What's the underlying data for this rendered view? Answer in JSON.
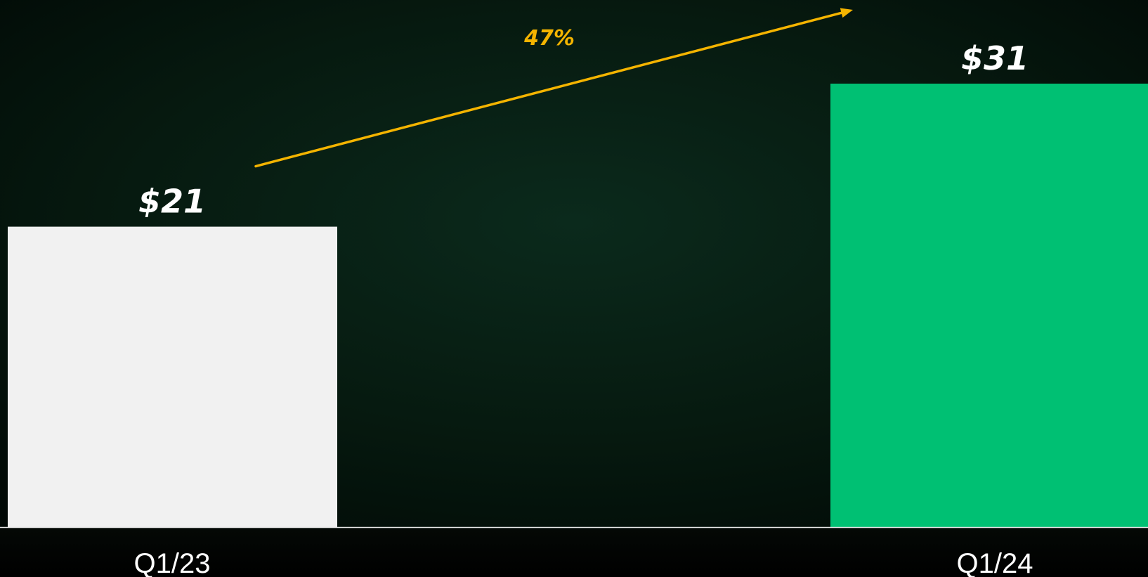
{
  "chart_data": {
    "type": "bar",
    "categories": [
      "Q1/23",
      "Q1/24"
    ],
    "values": [
      21,
      31
    ],
    "data_labels": [
      "$21",
      "$31"
    ],
    "title": "",
    "xlabel": "",
    "ylabel": "",
    "ylim": [
      0,
      31
    ],
    "grid": false,
    "legend": "none",
    "annotation": {
      "text": "47%",
      "type": "growth-arrow",
      "from": "Q1/23",
      "to": "Q1/24"
    },
    "colors": {
      "bars": [
        "#f1f1f1",
        "#00c073"
      ],
      "annotation": "#f4b400",
      "text": "#ffffff",
      "background": "#03130d",
      "baseline": "#e8e8e8"
    }
  }
}
